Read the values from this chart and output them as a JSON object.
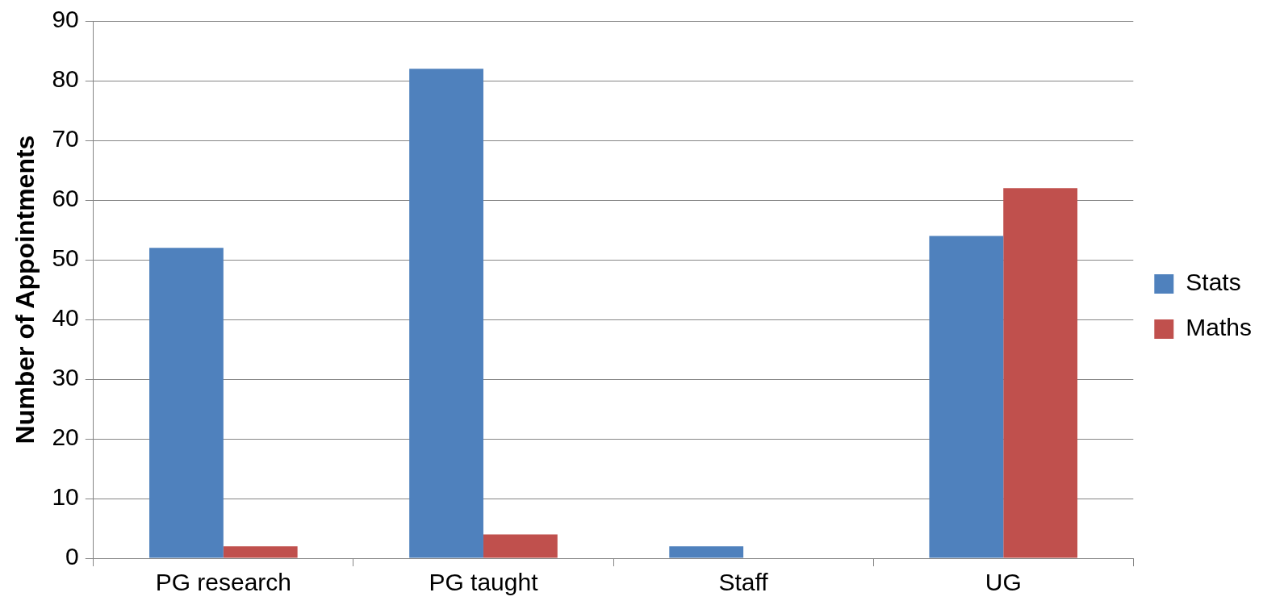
{
  "chart_data": {
    "type": "bar",
    "ylabel": "Number of Appointments",
    "categories": [
      "PG research",
      "PG taught",
      "Staff",
      "UG"
    ],
    "series": [
      {
        "name": "Stats",
        "color": "#4f81bd",
        "values": [
          52,
          82,
          2,
          54
        ]
      },
      {
        "name": "Maths",
        "color": "#c0504d",
        "values": [
          2,
          4,
          0,
          62
        ]
      }
    ],
    "ylim": [
      0,
      90
    ],
    "yticks": [
      0,
      10,
      20,
      30,
      40,
      50,
      60,
      70,
      80,
      90
    ],
    "grid": "y",
    "legend": "right"
  }
}
